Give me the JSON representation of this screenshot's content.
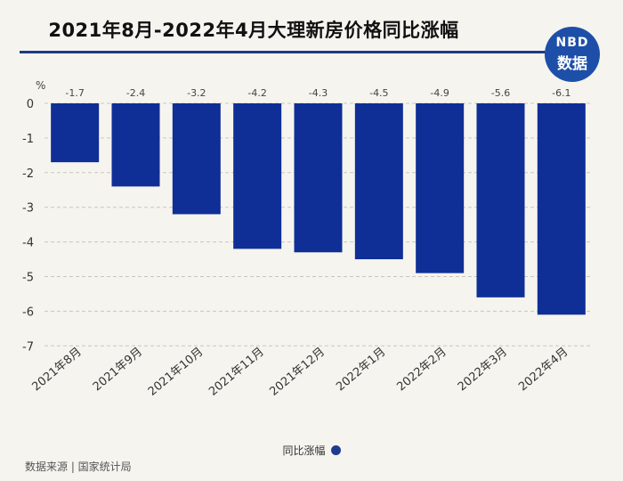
{
  "header": {
    "title": "2021年8月-2022年4月大理新房价格同比涨幅",
    "logo_line1": "NBD",
    "logo_line2": "数据"
  },
  "colors": {
    "bar": "#0f2f96",
    "accent": "#1f3a86"
  },
  "chart_data": {
    "type": "bar",
    "title": "2021年8月-2022年4月大理新房价格同比涨幅",
    "ylabel": "%",
    "ylim": [
      -7,
      0
    ],
    "yticks": [
      0,
      -1,
      -2,
      -3,
      -4,
      -5,
      -6,
      -7
    ],
    "grid": true,
    "categories": [
      "2021年8月",
      "2021年9月",
      "2021年10月",
      "2021年11月",
      "2021年12月",
      "2022年1月",
      "2022年2月",
      "2022年3月",
      "2022年4月"
    ],
    "series": [
      {
        "name": "同比涨幅",
        "values": [
          -1.7,
          -2.4,
          -3.2,
          -4.2,
          -4.3,
          -4.5,
          -4.9,
          -5.6,
          -6.1
        ]
      }
    ],
    "legend_position": "bottom"
  },
  "legend": {
    "label": "同比涨幅"
  },
  "footer": {
    "source": "数据来源 | 国家统计局"
  }
}
